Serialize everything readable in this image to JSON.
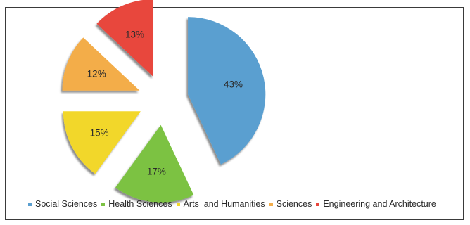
{
  "chart_data": {
    "type": "pie",
    "exploded": true,
    "categories": [
      "Social Sciences",
      "Health Sciences",
      "Arts  and Humanities",
      "Sciences",
      "Engineering and Architecture"
    ],
    "values": [
      43,
      17,
      15,
      12,
      13
    ],
    "labels": [
      "43%",
      "17%",
      "15%",
      "12%",
      "13%"
    ],
    "unit": "%",
    "colors": [
      "#5a9fd0",
      "#7cc243",
      "#f2d72a",
      "#f3ad4a",
      "#e8463c"
    ],
    "legend_position": "bottom",
    "title": ""
  }
}
